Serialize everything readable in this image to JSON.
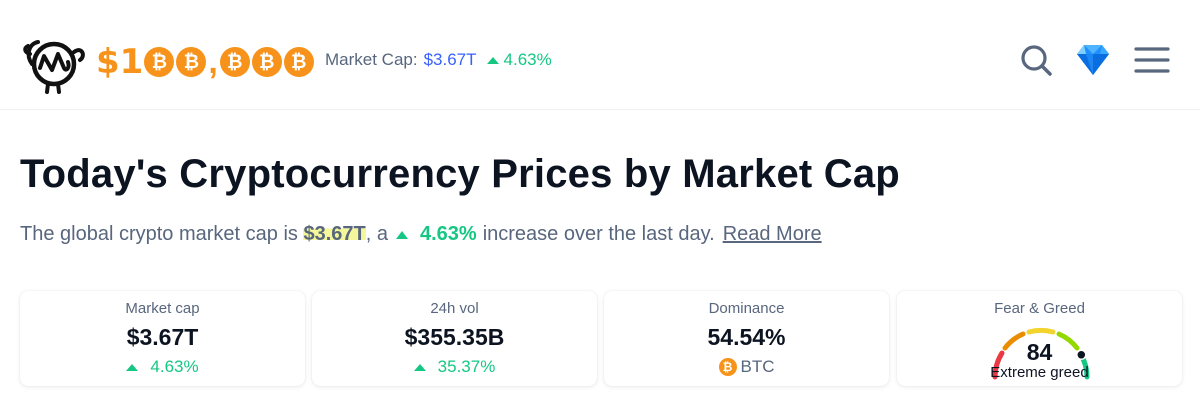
{
  "header": {
    "brand": {
      "prefix": "$1",
      "coin_glyph": "₿",
      "comma": ","
    },
    "market_cap": {
      "label": "Market Cap:",
      "value": "$3.67T",
      "change": "4.63%"
    },
    "icons": [
      "search-icon",
      "diamond-icon",
      "menu-icon"
    ]
  },
  "main": {
    "title": "Today's Cryptocurrency Prices by Market Cap",
    "subtitle": {
      "text_before": "The global crypto market cap is",
      "value": "$3.67T",
      "text_mid": ", a",
      "change": "4.63%",
      "text_after": "increase over the last day.",
      "link": "Read More"
    }
  },
  "stats": [
    {
      "label": "Market cap",
      "value": "$3.67T",
      "change": "4.63%"
    },
    {
      "label": "24h vol",
      "value": "$355.35B",
      "change": "35.37%"
    },
    {
      "label": "Dominance",
      "value": "54.54%",
      "coin": "BTC"
    },
    {
      "label": "Fear & Greed",
      "value": "84",
      "status": "Extreme greed",
      "level": 0.84
    }
  ],
  "colors": {
    "brand_orange": "#f7931a",
    "positive": "#16c784",
    "link_blue": "#3861fb",
    "muted": "#58667e",
    "text": "#0d1421",
    "highlight": "#f5f89a"
  }
}
